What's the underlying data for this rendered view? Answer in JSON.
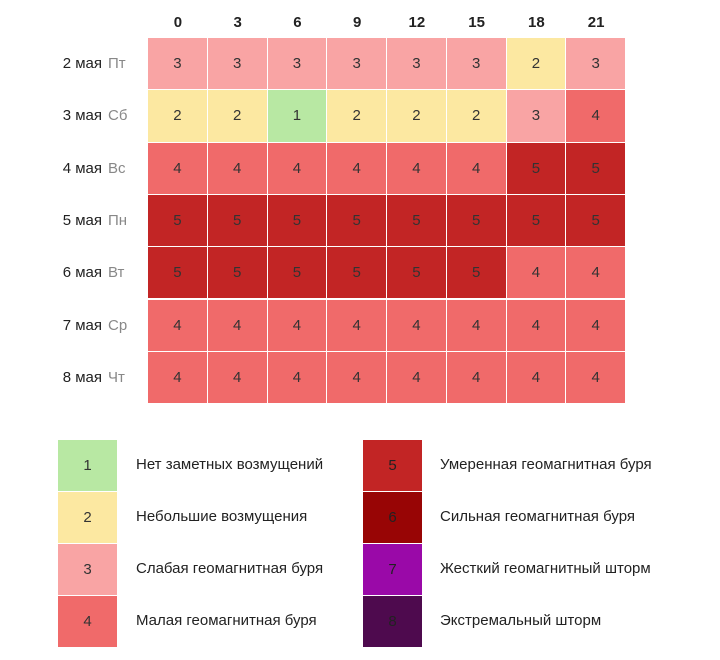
{
  "colors": {
    "1": "#b8e8a3",
    "2": "#fce8a1",
    "3": "#f9a4a4",
    "4": "#f06a6a",
    "5": "#c22525",
    "6": "#980505",
    "7": "#9a09a8",
    "8": "#4e0a4e"
  },
  "chart_data": {
    "type": "heatmap",
    "columns": [
      "0",
      "3",
      "6",
      "9",
      "12",
      "15",
      "18",
      "21"
    ],
    "rows": [
      {
        "date": "2 мая",
        "day": "Пт",
        "values": [
          3,
          3,
          3,
          3,
          3,
          3,
          2,
          3
        ]
      },
      {
        "date": "3 мая",
        "day": "Сб",
        "values": [
          2,
          2,
          1,
          2,
          2,
          2,
          3,
          4
        ]
      },
      {
        "date": "4 мая",
        "day": "Вс",
        "values": [
          4,
          4,
          4,
          4,
          4,
          4,
          5,
          5
        ]
      },
      {
        "date": "5 мая",
        "day": "Пн",
        "values": [
          5,
          5,
          5,
          5,
          5,
          5,
          5,
          5
        ]
      },
      {
        "date": "6 мая",
        "day": "Вт",
        "values": [
          5,
          5,
          5,
          5,
          5,
          5,
          4,
          4
        ]
      },
      {
        "date": "7 мая",
        "day": "Ср",
        "values": [
          4,
          4,
          4,
          4,
          4,
          4,
          4,
          4
        ]
      },
      {
        "date": "8 мая",
        "day": "Чт",
        "values": [
          4,
          4,
          4,
          4,
          4,
          4,
          4,
          4
        ]
      }
    ]
  },
  "legend": [
    {
      "level": "1",
      "label": "Нет заметных возмущений"
    },
    {
      "level": "2",
      "label": "Небольшие возмущения"
    },
    {
      "level": "3",
      "label": "Слабая геомагнитная буря"
    },
    {
      "level": "4",
      "label": "Малая геомагнитная буря"
    },
    {
      "level": "5",
      "label": "Умеренная геомагнитная буря"
    },
    {
      "level": "6",
      "label": "Сильная геомагнитная буря"
    },
    {
      "level": "7",
      "label": "Жесткий геомагнитный шторм"
    },
    {
      "level": "8",
      "label": "Экстремальный шторм"
    }
  ]
}
